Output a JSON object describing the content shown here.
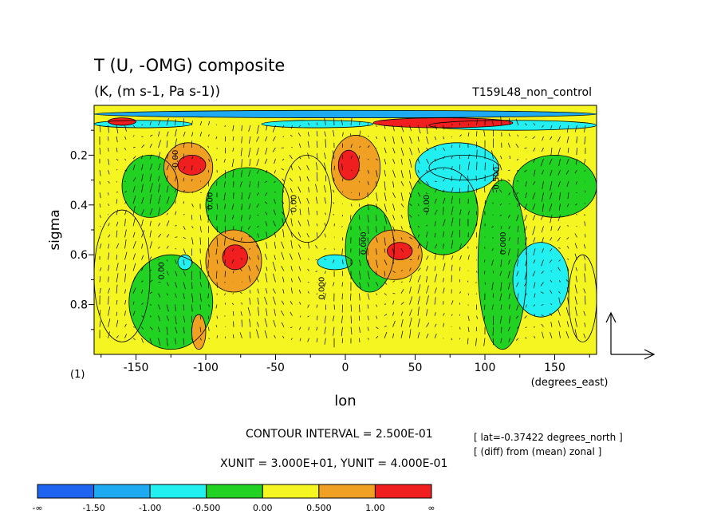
{
  "chart_data": {
    "type": "heatmap",
    "title": "T (U, -OMG) composite",
    "subtitle": "(K, (m s-1, Pa s-1))",
    "experiment": "T159L48_non_control",
    "xlabel": "lon",
    "xunit_label": "(degrees_east)",
    "ylabel": "sigma",
    "panel_label": "(1)",
    "xlim": [
      -180,
      180
    ],
    "ylim": [
      1.0,
      0.0
    ],
    "xticks": [
      -150,
      -100,
      -50,
      0,
      50,
      100,
      150
    ],
    "yticks": [
      0.2,
      0.4,
      0.6,
      0.8
    ],
    "contour_interval_text": "CONTOUR INTERVAL = 2.500E-01",
    "vector_unit_text": "XUNIT = 3.000E+01, YUNIT = 4.000E-01",
    "info_lines": [
      "[ lat=-0.37422 degrees_north ]",
      "[ (diff) from (mean) zonal ]"
    ],
    "colorbar": {
      "labels": [
        "-∞",
        "-1.50",
        "-1.00",
        "-0.500",
        "0.00",
        "0.500",
        "1.00",
        "∞"
      ],
      "colors": [
        "#1e64f0",
        "#1eaaf0",
        "#22f0f0",
        "#22d222",
        "#f5f522",
        "#f0a022",
        "#f01e1e"
      ]
    },
    "contour_labels": [
      {
        "text": "0.00",
        "x": -120,
        "y": 0.25
      },
      {
        "text": "0.00",
        "x": -95,
        "y": 0.42
      },
      {
        "text": "0.00",
        "x": -130,
        "y": 0.7
      },
      {
        "text": "0.00",
        "x": -35,
        "y": 0.43
      },
      {
        "text": "0.000",
        "x": -15,
        "y": 0.78
      },
      {
        "text": "0.000",
        "x": 15,
        "y": 0.6
      },
      {
        "text": "0.00",
        "x": 60,
        "y": 0.43
      },
      {
        "text": "0.000",
        "x": 115,
        "y": 0.6
      },
      {
        "text": "-0.500",
        "x": 110,
        "y": 0.35
      }
    ],
    "regions": [
      {
        "lon": [
          -180,
          180
        ],
        "sig": [
          0.0,
          1.0
        ],
        "v": 0.25
      },
      {
        "lon": [
          -180,
          -140
        ],
        "sig": [
          0.42,
          0.95
        ],
        "v": 0.25
      },
      {
        "lon": [
          -160,
          -120
        ],
        "sig": [
          0.2,
          0.45
        ],
        "v": -0.25
      },
      {
        "lon": [
          -155,
          -95
        ],
        "sig": [
          0.6,
          0.98
        ],
        "v": -0.25
      },
      {
        "lon": [
          -130,
          -95
        ],
        "sig": [
          0.15,
          0.35
        ],
        "v": 0.75
      },
      {
        "lon": [
          -120,
          -100
        ],
        "sig": [
          0.2,
          0.28
        ],
        "v": 1.05
      },
      {
        "lon": [
          -100,
          -40
        ],
        "sig": [
          0.25,
          0.55
        ],
        "v": -0.25
      },
      {
        "lon": [
          -100,
          -60
        ],
        "sig": [
          0.5,
          0.75
        ],
        "v": 0.75
      },
      {
        "lon": [
          -88,
          -70
        ],
        "sig": [
          0.56,
          0.66
        ],
        "v": 1.25
      },
      {
        "lon": [
          -110,
          -100
        ],
        "sig": [
          0.84,
          0.98
        ],
        "v": 0.75
      },
      {
        "lon": [
          -120,
          -110
        ],
        "sig": [
          0.6,
          0.66
        ],
        "v": -0.75
      },
      {
        "lon": [
          -45,
          -10
        ],
        "sig": [
          0.2,
          0.55
        ],
        "v": 0.25
      },
      {
        "lon": [
          -20,
          5
        ],
        "sig": [
          0.6,
          0.66
        ],
        "v": -0.75
      },
      {
        "lon": [
          -10,
          25
        ],
        "sig": [
          0.12,
          0.38
        ],
        "v": 0.75
      },
      {
        "lon": [
          -5,
          10
        ],
        "sig": [
          0.18,
          0.3
        ],
        "v": 1.25
      },
      {
        "lon": [
          0,
          35
        ],
        "sig": [
          0.4,
          0.75
        ],
        "v": -0.25
      },
      {
        "lon": [
          15,
          55
        ],
        "sig": [
          0.5,
          0.7
        ],
        "v": 0.75
      },
      {
        "lon": [
          30,
          48
        ],
        "sig": [
          0.55,
          0.62
        ],
        "v": 1.25
      },
      {
        "lon": [
          45,
          95
        ],
        "sig": [
          0.25,
          0.6
        ],
        "v": -0.25
      },
      {
        "lon": [
          50,
          110
        ],
        "sig": [
          0.15,
          0.35
        ],
        "v": -0.75
      },
      {
        "lon": [
          60,
          110
        ],
        "sig": [
          0.2,
          0.3
        ],
        "v": -0.75
      },
      {
        "lon": [
          95,
          130
        ],
        "sig": [
          0.3,
          0.98
        ],
        "v": -0.25
      },
      {
        "lon": [
          120,
          160
        ],
        "sig": [
          0.55,
          0.85
        ],
        "v": -0.75
      },
      {
        "lon": [
          120,
          180
        ],
        "sig": [
          0.2,
          0.45
        ],
        "v": -0.25
      },
      {
        "lon": [
          160,
          180
        ],
        "sig": [
          0.6,
          0.95
        ],
        "v": 0.25
      },
      {
        "lon": [
          -180,
          -110
        ],
        "sig": [
          0.06,
          0.09
        ],
        "v": -0.75
      },
      {
        "lon": [
          -60,
          20
        ],
        "sig": [
          0.06,
          0.09
        ],
        "v": -0.75
      },
      {
        "lon": [
          60,
          180
        ],
        "sig": [
          0.06,
          0.1
        ],
        "v": -0.75
      },
      {
        "lon": [
          -180,
          180
        ],
        "sig": [
          0.02,
          0.05
        ],
        "v": -1.25
      },
      {
        "lon": [
          20,
          120
        ],
        "sig": [
          0.05,
          0.09
        ],
        "v": 1.25
      },
      {
        "lon": [
          -170,
          -150
        ],
        "sig": [
          0.05,
          0.08
        ],
        "v": 1.25
      }
    ]
  }
}
